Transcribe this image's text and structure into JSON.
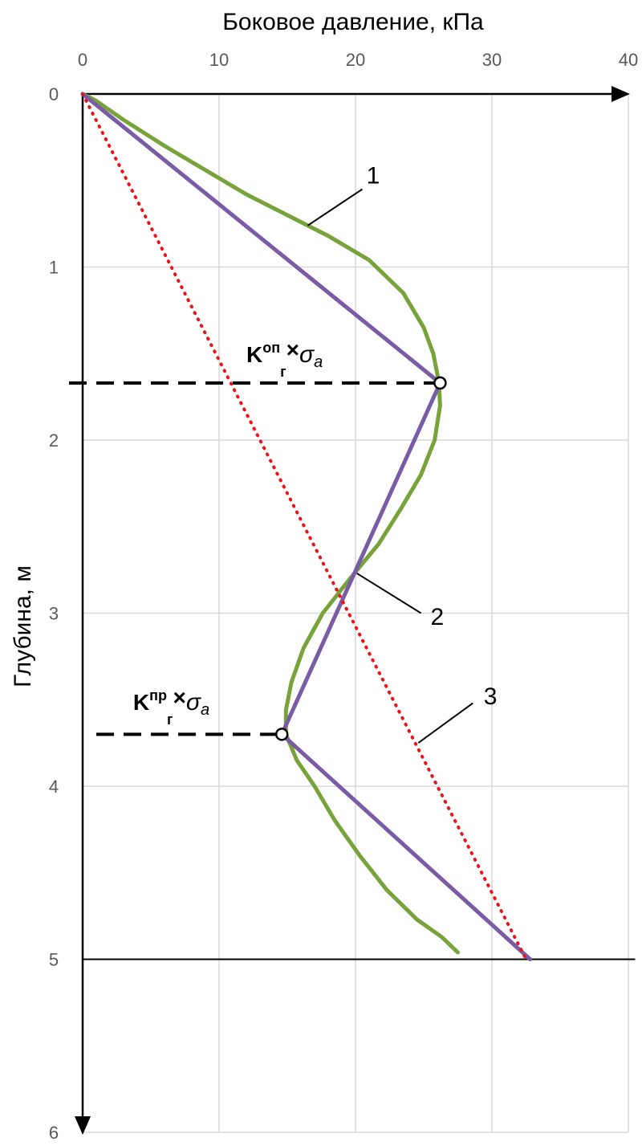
{
  "chart_data": {
    "type": "line",
    "title": "",
    "xlabel": "Боковое давление, кПа",
    "ylabel": "Глубина, м",
    "x_ticks": [
      "0",
      "10",
      "20",
      "30",
      "40"
    ],
    "y_ticks": [
      "0",
      "1",
      "2",
      "3",
      "4",
      "5",
      "6"
    ],
    "xlim": [
      0,
      40
    ],
    "ylim": [
      0,
      6
    ],
    "x_axis_position": "top",
    "y_inverted": true,
    "grid": true,
    "legend": "none",
    "series": [
      {
        "label": "1",
        "style": "solid",
        "color": "#77a33a",
        "points": [
          [
            0,
            0
          ],
          [
            1,
            0.04
          ],
          [
            3,
            0.15
          ],
          [
            6,
            0.3
          ],
          [
            9,
            0.44
          ],
          [
            12,
            0.58
          ],
          [
            15,
            0.7
          ],
          [
            18,
            0.82
          ],
          [
            21,
            0.96
          ],
          [
            23.5,
            1.15
          ],
          [
            25,
            1.35
          ],
          [
            25.7,
            1.5
          ],
          [
            26.1,
            1.66
          ],
          [
            26.2,
            1.8
          ],
          [
            25.8,
            2.0
          ],
          [
            24.8,
            2.2
          ],
          [
            23.3,
            2.4
          ],
          [
            21.7,
            2.6
          ],
          [
            19.6,
            2.8
          ],
          [
            17.6,
            3.0
          ],
          [
            16.2,
            3.2
          ],
          [
            15.3,
            3.4
          ],
          [
            14.9,
            3.56
          ],
          [
            14.9,
            3.7
          ],
          [
            15.7,
            3.85
          ],
          [
            17,
            4.0
          ],
          [
            18.5,
            4.2
          ],
          [
            20.3,
            4.4
          ],
          [
            22.3,
            4.6
          ],
          [
            24.5,
            4.77
          ],
          [
            26.3,
            4.87
          ],
          [
            27.5,
            4.96
          ]
        ]
      },
      {
        "label": "2",
        "style": "solid",
        "color": "#7a5ca6",
        "points": [
          [
            0,
            0
          ],
          [
            26.2,
            1.67
          ],
          [
            14.6,
            3.7
          ],
          [
            32.8,
            5.0
          ]
        ]
      },
      {
        "label": "3",
        "style": "dotted",
        "color": "#e8141c",
        "points": [
          [
            0,
            0
          ],
          [
            32.5,
            5.0
          ]
        ]
      }
    ],
    "reference_lines": [
      {
        "type": "dashed",
        "y": 1.67,
        "x_from": -1,
        "x_to": 26.2
      },
      {
        "type": "dashed",
        "y": 3.7,
        "x_from": 1,
        "x_to": 14.6
      },
      {
        "type": "solid",
        "y": 5.0,
        "x_from": 0,
        "x_to": 40.5
      }
    ],
    "markers": [
      {
        "x": 26.2,
        "y": 1.67
      },
      {
        "x": 14.6,
        "y": 3.7
      }
    ],
    "callouts": [
      {
        "text": "1",
        "text_x": 20.8,
        "text_y": 0.47,
        "line_from": [
          20.5,
          0.55
        ],
        "line_to": [
          16.5,
          0.76
        ]
      },
      {
        "text": "2",
        "text_x": 25.5,
        "text_y": 3.02,
        "line_from": [
          24.8,
          3.0
        ],
        "line_to": [
          20.1,
          2.77
        ]
      },
      {
        "text": "3",
        "text_x": 29.4,
        "text_y": 3.48,
        "line_from": [
          28.6,
          3.52
        ],
        "line_to": [
          24.6,
          3.75
        ]
      }
    ],
    "k_labels": [
      {
        "main": "K",
        "sup": "оп",
        "sub": "г",
        "times": "×",
        "sigma": "σ",
        "sigma_sub": "a",
        "x": 12,
        "y": 1.55
      },
      {
        "main": "K",
        "sup": "пр",
        "sub": "г",
        "times": "×",
        "sigma": "σ",
        "sigma_sub": "a",
        "x": 3.7,
        "y": 3.56
      }
    ],
    "annotation_color": "#000000"
  }
}
